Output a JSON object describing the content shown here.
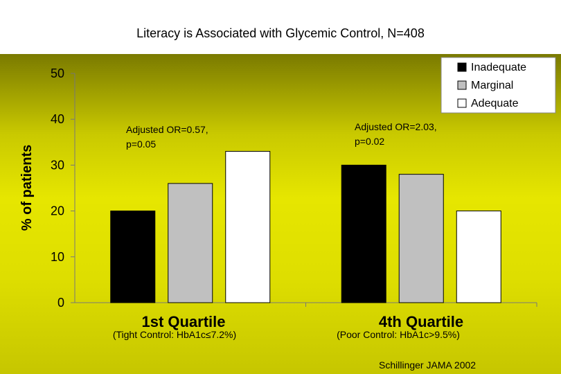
{
  "header": {
    "title": "Literacy is Associated with Glycemic Control, N=408"
  },
  "chart_data": {
    "type": "bar",
    "categories": [
      "1st Quartile",
      "4th Quartile"
    ],
    "category_sublabels": [
      "(Tight Control: HbA1c≤7.2%)",
      "(Poor Control: HbA1c>9.5%)"
    ],
    "series": [
      {
        "name": "Inadequate",
        "values": [
          20,
          30
        ],
        "color": "#000000"
      },
      {
        "name": "Marginal",
        "values": [
          26,
          28
        ],
        "color": "#c0c0c0"
      },
      {
        "name": "Adequate",
        "values": [
          33,
          20
        ],
        "color": "#ffffff"
      }
    ],
    "ylabel": "% of patients",
    "ylim": [
      0,
      50
    ],
    "yticks": [
      0,
      10,
      20,
      30,
      40,
      50
    ],
    "annotations": [
      {
        "line1": "Adjusted OR=0.57,",
        "line2": "p=0.05"
      },
      {
        "line1": "Adjusted OR=2.03,",
        "line2": "p=0.02"
      }
    ],
    "legend_position": "top-right",
    "grid": false
  },
  "source": "Schillinger JAMA 2002"
}
